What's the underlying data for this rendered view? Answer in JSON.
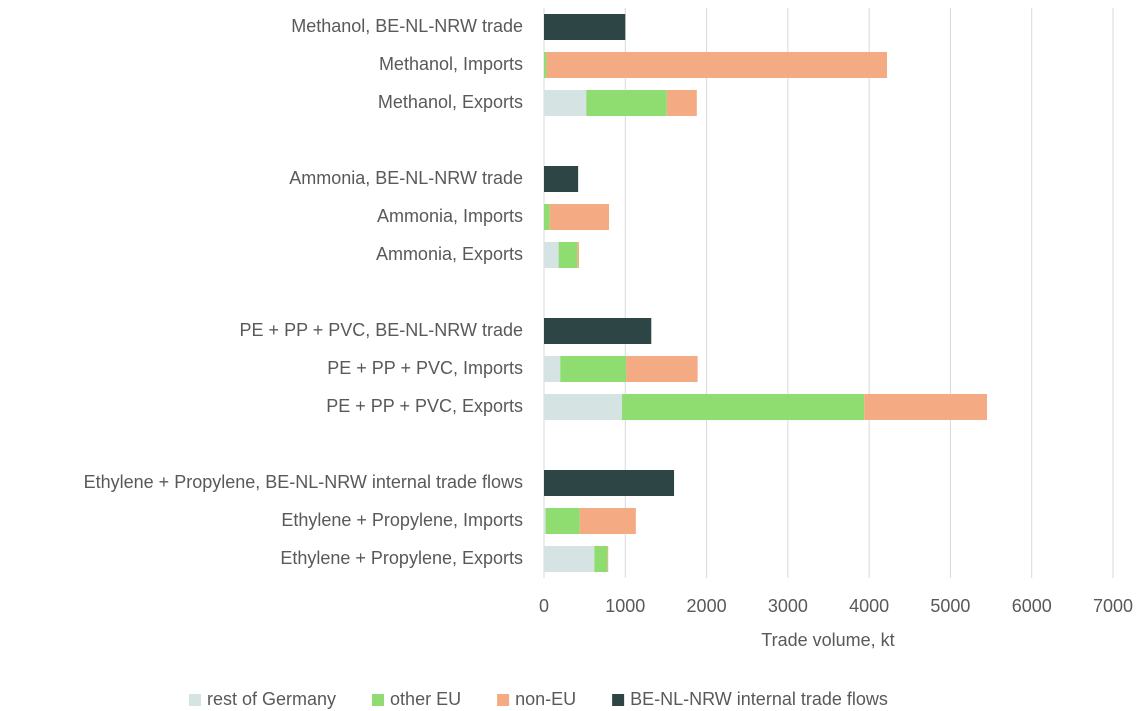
{
  "chart_data": {
    "type": "stacked_barh",
    "categories": [
      "Methanol, BE-NL-NRW trade",
      "Methanol, Imports",
      "Methanol, Exports",
      null,
      "Ammonia, BE-NL-NRW trade",
      "Ammonia, Imports",
      "Ammonia, Exports",
      null,
      "PE + PP + PVC, BE-NL-NRW trade",
      "PE + PP + PVC, Imports",
      "PE + PP + PVC, Exports",
      null,
      "Ethylene + Propylene, BE-NL-NRW internal trade flows",
      "Ethylene + Propylene, Imports",
      "Ethylene + Propylene, Exports"
    ],
    "series": [
      {
        "name": "rest of Germany",
        "color": "#d5e3e3",
        "values": [
          null,
          null,
          520,
          null,
          null,
          null,
          180,
          null,
          null,
          200,
          960,
          null,
          null,
          20,
          620
        ]
      },
      {
        "name": "other EU",
        "color": "#8fdc70",
        "values": [
          null,
          30,
          990,
          null,
          null,
          70,
          230,
          null,
          null,
          810,
          2980,
          null,
          null,
          420,
          160
        ]
      },
      {
        "name": "non-EU",
        "color": "#f4ab84",
        "values": [
          null,
          4190,
          370,
          null,
          null,
          730,
          20,
          null,
          null,
          880,
          1510,
          null,
          null,
          690,
          10
        ]
      },
      {
        "name": "BE-NL-NRW internal trade flows",
        "color": "#2d4645",
        "values": [
          1000,
          null,
          null,
          null,
          420,
          null,
          null,
          null,
          1320,
          null,
          null,
          null,
          1600,
          null,
          null
        ]
      }
    ],
    "xlabel": "Trade volume, kt",
    "xlim": [
      0,
      7000
    ],
    "xticks": [
      0,
      1000,
      2000,
      3000,
      4000,
      5000,
      6000,
      7000
    ],
    "grid": true,
    "legend": "bottom"
  }
}
